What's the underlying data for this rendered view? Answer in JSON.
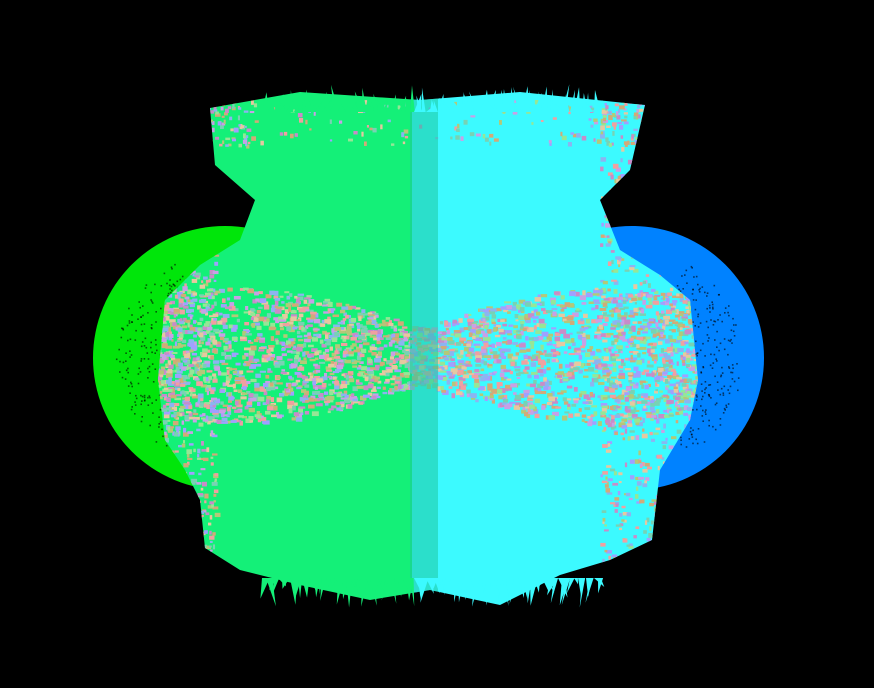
{
  "background_color": "#000000",
  "colors": {
    "left_disc": "#00e60a",
    "right_disc": "#0082ff",
    "left_body": "#14f078",
    "right_body": "#3cfaff",
    "center_seam": "#1ec8a0",
    "speckle_palette": [
      "#c88cc8",
      "#8cb4f0",
      "#b4c878",
      "#f0a0a0",
      "#78d2b4",
      "#d2aa78",
      "#a0a0ff",
      "#e6c8a0",
      "#96e696",
      "#c8a0e6"
    ]
  },
  "icons": [
    "left-disc",
    "right-disc",
    "particle-body",
    "speckle-band",
    "center-seam"
  ]
}
